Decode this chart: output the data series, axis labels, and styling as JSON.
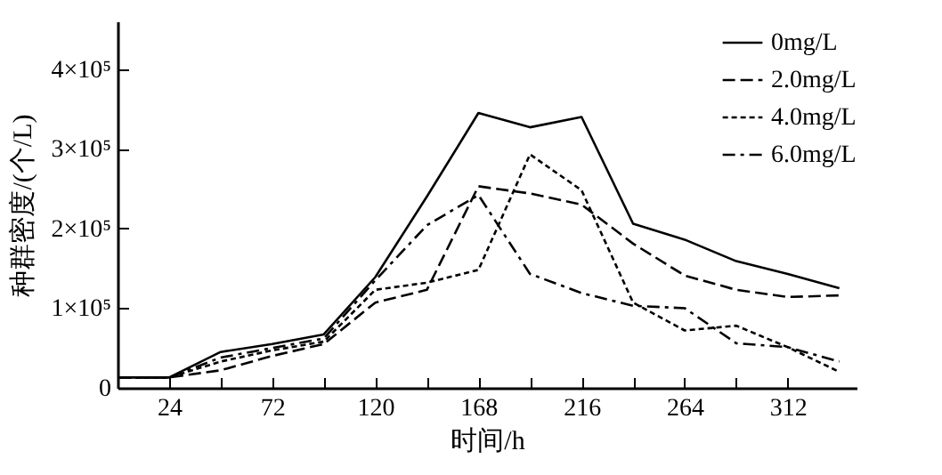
{
  "chart_data": {
    "type": "line",
    "xlabel": "时间/h",
    "ylabel": "种群密度/(个/L)",
    "x": [
      0,
      24,
      48,
      72,
      96,
      120,
      144,
      168,
      192,
      216,
      240,
      264,
      288,
      312,
      336
    ],
    "series": [
      {
        "name": "0mg/L",
        "color": "#000000",
        "line_style": "solid",
        "values": [
          13000,
          13000,
          45000,
          55000,
          67000,
          139000,
          240000,
          345000,
          327000,
          340000,
          206000,
          186000,
          159000,
          143000,
          125000
        ]
      },
      {
        "name": "2.0mg/L",
        "color": "#000000",
        "line_style": "dashed",
        "values": [
          13000,
          13000,
          22000,
          40000,
          55000,
          107000,
          123000,
          253000,
          244000,
          230000,
          181000,
          141000,
          123000,
          114000,
          116000
        ]
      },
      {
        "name": "4.0mg/L",
        "color": "#000000",
        "line_style": "dotted",
        "values": [
          13000,
          13000,
          33000,
          47000,
          58000,
          123000,
          132000,
          148000,
          293000,
          248000,
          107000,
          72000,
          78000,
          51000,
          20000
        ]
      },
      {
        "name": "6.0mg/L",
        "color": "#000000",
        "line_style": "dashdot",
        "values": [
          13000,
          13000,
          38000,
          50000,
          62000,
          135000,
          204000,
          242000,
          143000,
          119000,
          103000,
          100000,
          56000,
          51000,
          33000
        ]
      }
    ],
    "xlim": [
      0,
      344
    ],
    "xticks": [
      {
        "value": 0,
        "label": null
      },
      24,
      {
        "value": 48,
        "label": null
      },
      72,
      {
        "value": 96,
        "label": null
      },
      120,
      {
        "value": 144,
        "label": null
      },
      168,
      {
        "value": 192,
        "label": null
      },
      216,
      {
        "value": 240,
        "label": null
      },
      264,
      {
        "value": 288,
        "label": null
      },
      312
    ],
    "ylim": [
      0,
      460000
    ],
    "yticks": [
      0,
      {
        "value": 100000,
        "label": "1×10⁵"
      },
      {
        "value": 200000,
        "label": "2×10⁵"
      },
      {
        "value": 300000,
        "label": "3×10⁵"
      },
      {
        "value": 400000,
        "label": "4×10⁵"
      }
    ],
    "grid": false,
    "legend": "top right",
    "marker": "none"
  }
}
